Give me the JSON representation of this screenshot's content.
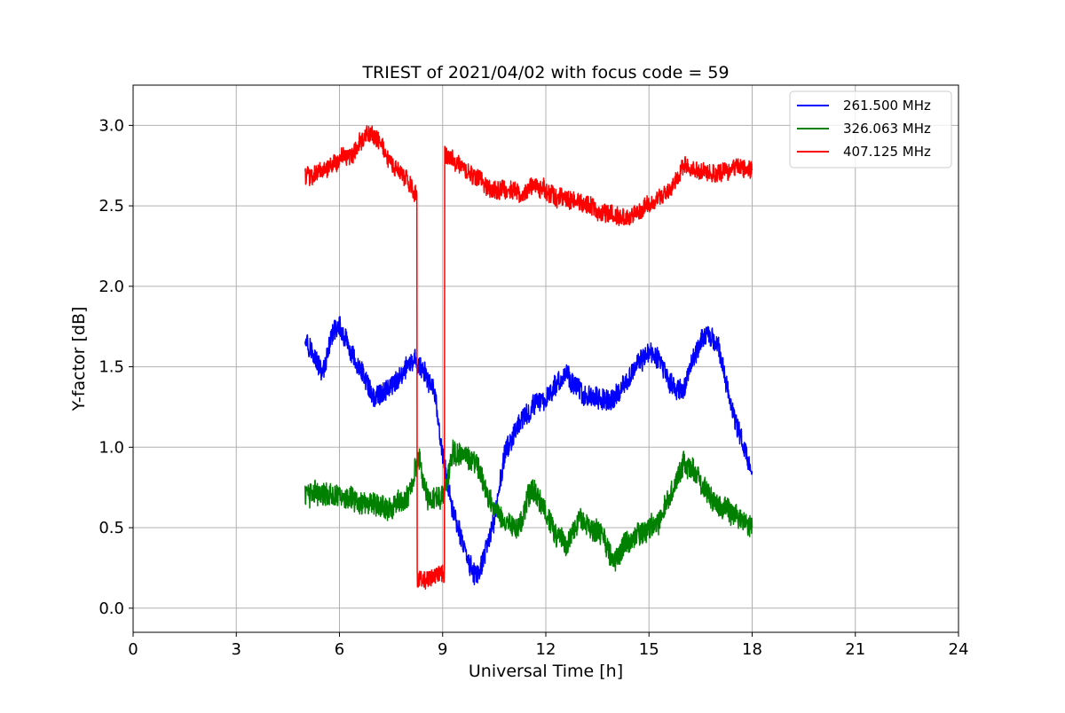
{
  "chart_data": {
    "type": "line",
    "title": "TRIEST of 2021/04/02 with focus code = 59",
    "xlabel": "Universal Time [h]",
    "ylabel": "Y-factor [dB]",
    "xlim": [
      0,
      24
    ],
    "ylim": [
      -0.15,
      3.25
    ],
    "xticks": [
      0,
      3,
      6,
      9,
      12,
      15,
      18,
      21,
      24
    ],
    "xtick_labels": [
      "0",
      "3",
      "6",
      "9",
      "12",
      "15",
      "18",
      "21",
      "24"
    ],
    "yticks": [
      0.0,
      0.5,
      1.0,
      1.5,
      2.0,
      2.5,
      3.0
    ],
    "ytick_labels": [
      "0.0",
      "0.5",
      "1.0",
      "1.5",
      "2.0",
      "2.5",
      "3.0"
    ],
    "grid": true,
    "legend_position": "top-right",
    "series": [
      {
        "name": "261.500 MHz",
        "color": "#0000ff",
        "noise": 0.13,
        "x": [
          5.0,
          5.3,
          5.5,
          5.8,
          6.0,
          6.3,
          6.5,
          6.8,
          7.0,
          7.3,
          7.6,
          8.0,
          8.2,
          8.5,
          8.8,
          9.0,
          9.3,
          9.6,
          9.8,
          10.0,
          10.2,
          10.5,
          10.8,
          11.0,
          11.3,
          11.6,
          12.0,
          12.3,
          12.6,
          13.0,
          13.3,
          13.6,
          14.0,
          14.3,
          14.6,
          15.0,
          15.3,
          15.6,
          16.0,
          16.3,
          16.6,
          17.0,
          17.3,
          17.6,
          18.0
        ],
        "y": [
          1.7,
          1.55,
          1.45,
          1.7,
          1.75,
          1.6,
          1.5,
          1.4,
          1.3,
          1.35,
          1.4,
          1.5,
          1.55,
          1.45,
          1.3,
          0.95,
          0.6,
          0.4,
          0.25,
          0.2,
          0.3,
          0.55,
          0.95,
          1.05,
          1.15,
          1.25,
          1.3,
          1.4,
          1.45,
          1.35,
          1.3,
          1.3,
          1.3,
          1.4,
          1.5,
          1.6,
          1.55,
          1.4,
          1.35,
          1.55,
          1.7,
          1.65,
          1.35,
          1.1,
          0.85
        ]
      },
      {
        "name": "326.063 MHz",
        "color": "#008000",
        "noise": 0.14,
        "x": [
          5.0,
          5.5,
          6.0,
          6.5,
          7.0,
          7.5,
          8.0,
          8.3,
          8.6,
          9.0,
          9.3,
          9.6,
          10.0,
          10.3,
          10.6,
          11.0,
          11.3,
          11.6,
          12.0,
          12.3,
          12.6,
          13.0,
          13.3,
          13.6,
          14.0,
          14.3,
          14.6,
          15.0,
          15.3,
          15.6,
          16.0,
          16.3,
          16.6,
          17.0,
          17.3,
          17.6,
          18.0
        ],
        "y": [
          0.7,
          0.72,
          0.7,
          0.65,
          0.65,
          0.62,
          0.7,
          0.95,
          0.65,
          0.7,
          0.95,
          0.95,
          0.9,
          0.7,
          0.6,
          0.5,
          0.55,
          0.75,
          0.6,
          0.45,
          0.4,
          0.55,
          0.5,
          0.45,
          0.3,
          0.4,
          0.45,
          0.5,
          0.55,
          0.7,
          0.9,
          0.85,
          0.75,
          0.65,
          0.6,
          0.55,
          0.5
        ]
      },
      {
        "name": "407.125 MHz",
        "color": "#ff0000",
        "noise": 0.11,
        "x": [
          5.0,
          5.3,
          5.6,
          6.0,
          6.3,
          6.6,
          6.9,
          7.2,
          7.5,
          7.8,
          8.0,
          8.25,
          8.26,
          8.5,
          8.8,
          9.05,
          9.06,
          9.3,
          9.6,
          10.0,
          10.3,
          10.6,
          11.0,
          11.3,
          11.6,
          12.0,
          12.3,
          12.6,
          13.0,
          13.3,
          13.6,
          14.0,
          14.3,
          14.6,
          15.0,
          15.3,
          15.6,
          16.0,
          16.3,
          16.6,
          17.0,
          17.3,
          17.6,
          18.0
        ],
        "y": [
          2.68,
          2.7,
          2.72,
          2.78,
          2.8,
          2.9,
          2.95,
          2.88,
          2.75,
          2.7,
          2.65,
          2.55,
          0.18,
          0.17,
          0.2,
          0.22,
          2.82,
          2.8,
          2.72,
          2.68,
          2.62,
          2.6,
          2.6,
          2.58,
          2.62,
          2.6,
          2.55,
          2.55,
          2.52,
          2.5,
          2.45,
          2.45,
          2.42,
          2.45,
          2.52,
          2.55,
          2.6,
          2.75,
          2.72,
          2.7,
          2.7,
          2.72,
          2.75,
          2.72
        ]
      }
    ]
  }
}
